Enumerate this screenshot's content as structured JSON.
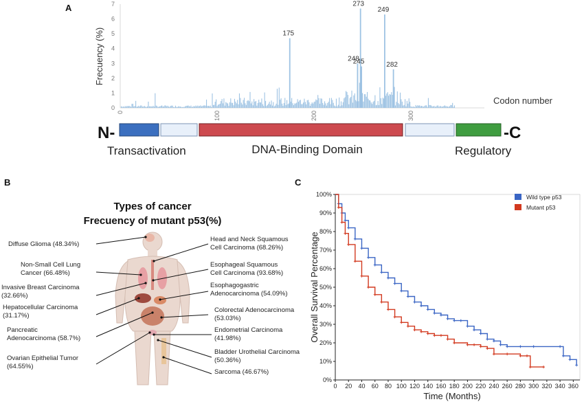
{
  "panels": {
    "a": "A",
    "b": "B",
    "c": "C"
  },
  "panel_a": {
    "ylabel": "Frecuency (%)",
    "xlabel": "Codon number",
    "peak_labels": [
      "175",
      "248",
      "273",
      "245",
      "249",
      "282"
    ],
    "terminal_n": "N-",
    "terminal_c": "-C",
    "domain_labels": {
      "transactivation": "Transactivation",
      "dna_binding": "DNA-Binding Domain",
      "regulatory": "Regulatory"
    },
    "domain_colors": {
      "transactivation": "#3b6fbf",
      "linker": "#e8f0fa",
      "dna_binding": "#cd4a4f",
      "regulatory": "#3f9d40"
    }
  },
  "panel_b": {
    "title_line1": "Types of cancer",
    "title_line2": "Frecuency of mutant p53(%)",
    "left_labels": [
      {
        "lines": [
          "Diffuse Glioma (48.34%)"
        ]
      },
      {
        "lines": [
          "Non-Small Cell Lung",
          "Cancer (66.48%)"
        ]
      },
      {
        "lines": [
          "Invasive Breast Carcinoma",
          "(32.66%)"
        ]
      },
      {
        "lines": [
          "Hepatocellular Carcinoma",
          "(31.17%)"
        ]
      },
      {
        "lines": [
          "Pancreatic",
          "Adenocarcinoma (58.7%)"
        ]
      },
      {
        "lines": [
          "Ovarian Epithelial Tumor",
          "(64.55%)"
        ]
      }
    ],
    "right_labels": [
      {
        "lines": [
          "Head and Neck Squamous",
          "Cell Carcinoma (68.26%)"
        ]
      },
      {
        "lines": [
          "Esophageal Squamous",
          "Cell Carcinoma (93.68%)"
        ]
      },
      {
        "lines": [
          "Esophagogastric",
          "Adenocarcinoma (54.09%)"
        ]
      },
      {
        "lines": [
          "Colorectal Adenocarcinoma",
          "(53.03%)"
        ]
      },
      {
        "lines": [
          "Endometrial Carcinoma",
          "(41.98%)"
        ]
      },
      {
        "lines": [
          "Bladder Urothelial Carcinoma",
          "(50.36%)"
        ]
      },
      {
        "lines": [
          "Sarcoma (46.67%)"
        ]
      }
    ]
  },
  "chart_data": [
    {
      "type": "bar",
      "xlabel": "Codon number",
      "ylabel": "Frecuency (%)",
      "xlim": [
        0,
        393
      ],
      "ylim": [
        0,
        7
      ],
      "x_ticks": [
        0,
        100,
        200,
        300
      ],
      "y_ticks": [
        0,
        1,
        2,
        3,
        4,
        5,
        6,
        7
      ],
      "bar_color": "#9ec3e3",
      "peaks": [
        {
          "codon": 175,
          "value": 4.7,
          "label": "175"
        },
        {
          "codon": 245,
          "value": 3.0,
          "label": "245"
        },
        {
          "codon": 248,
          "value": 6.7,
          "label": "248"
        },
        {
          "codon": 249,
          "value": 2.8,
          "label": "249"
        },
        {
          "codon": 273,
          "value": 6.3,
          "label": "273"
        },
        {
          "codon": 282,
          "value": 2.6,
          "label": "282"
        }
      ]
    },
    {
      "type": "line",
      "xlabel": "Time (Months)",
      "ylabel": "Overall Survival Percentage",
      "xlim": [
        0,
        370
      ],
      "ylim": [
        0,
        100
      ],
      "x_ticks": [
        "0",
        "20",
        "40",
        "60",
        "80",
        "100",
        "120",
        "140",
        "160",
        "180",
        "200",
        "220",
        "240",
        "260",
        "280",
        "300",
        "320",
        "340",
        "360"
      ],
      "y_ticks": [
        "0%",
        "10%",
        "20%",
        "30%",
        "40%",
        "50%",
        "60%",
        "70%",
        "80%",
        "90%",
        "100%"
      ],
      "legend_position": "top-right",
      "series": [
        {
          "name": "Wild type p53",
          "color": "#3a65c4",
          "points": [
            [
              0,
              100
            ],
            [
              5,
              95
            ],
            [
              10,
              90
            ],
            [
              15,
              86
            ],
            [
              20,
              82
            ],
            [
              30,
              76
            ],
            [
              40,
              71
            ],
            [
              50,
              66
            ],
            [
              60,
              62
            ],
            [
              70,
              58
            ],
            [
              80,
              55
            ],
            [
              90,
              52
            ],
            [
              100,
              48
            ],
            [
              110,
              45
            ],
            [
              120,
              42
            ],
            [
              130,
              40
            ],
            [
              140,
              38
            ],
            [
              150,
              36
            ],
            [
              160,
              35
            ],
            [
              170,
              33
            ],
            [
              180,
              32
            ],
            [
              190,
              32
            ],
            [
              200,
              29
            ],
            [
              210,
              27
            ],
            [
              220,
              25
            ],
            [
              230,
              22
            ],
            [
              240,
              21
            ],
            [
              250,
              19
            ],
            [
              260,
              18
            ],
            [
              280,
              18
            ],
            [
              300,
              18
            ],
            [
              340,
              18
            ],
            [
              345,
              13
            ],
            [
              355,
              11
            ],
            [
              365,
              8
            ]
          ]
        },
        {
          "name": "Mutant p53",
          "color": "#d2391f",
          "points": [
            [
              0,
              100
            ],
            [
              5,
              93
            ],
            [
              10,
              85
            ],
            [
              15,
              79
            ],
            [
              20,
              73
            ],
            [
              30,
              64
            ],
            [
              40,
              56
            ],
            [
              50,
              50
            ],
            [
              60,
              46
            ],
            [
              70,
              42
            ],
            [
              80,
              38
            ],
            [
              90,
              34
            ],
            [
              100,
              31
            ],
            [
              110,
              29
            ],
            [
              120,
              27
            ],
            [
              130,
              26
            ],
            [
              140,
              25
            ],
            [
              150,
              24
            ],
            [
              160,
              24
            ],
            [
              170,
              22
            ],
            [
              180,
              20
            ],
            [
              200,
              19
            ],
            [
              210,
              19
            ],
            [
              220,
              18
            ],
            [
              230,
              17
            ],
            [
              240,
              14
            ],
            [
              260,
              14
            ],
            [
              280,
              13
            ],
            [
              290,
              13
            ],
            [
              295,
              7
            ],
            [
              315,
              7
            ]
          ]
        }
      ]
    }
  ]
}
